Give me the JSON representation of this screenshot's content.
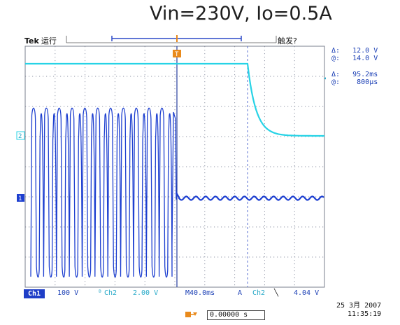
{
  "title": "Vin=230V, Io=0.5A",
  "header": {
    "brand": "Tek",
    "run_state": "运行",
    "trigger_state": "触发?"
  },
  "cursors": {
    "delta_v_label": "Δ:",
    "delta_v": "12.0 V",
    "at_v_label": "@:",
    "at_v": "14.0 V",
    "delta_t_label": "Δ:",
    "delta_t": "95.2ms",
    "at_t_label": "@:",
    "at_t": "800µs"
  },
  "markers": {
    "ch2": "2",
    "ch1": "1",
    "trigger": "T"
  },
  "status_bar": {
    "ch1_label": "Ch1",
    "ch1_scale": "100 V",
    "ch2_label": "Ch2",
    "ch2_scale": "2.00 V",
    "timebase": "M40.0ms",
    "trigger_source_label": "A",
    "trigger_source": "Ch2",
    "trigger_slope_icon": "falling-edge-icon",
    "trigger_level": "4.04 V"
  },
  "trigger_position": "0.00000 s",
  "datetime": {
    "date": "25 3月 2007",
    "time": "11:35:19"
  },
  "colors": {
    "ch1": "#1d3fd0",
    "ch2": "#27d3e6",
    "grid": "#9aa0b0",
    "accent_orange": "#e98a1c"
  },
  "waveforms": {
    "ch1_ac_cycles_before_switchoff": 11,
    "ch1_dc_ripple_cycles": 15,
    "ch2_fall_description": "exponential decay"
  }
}
